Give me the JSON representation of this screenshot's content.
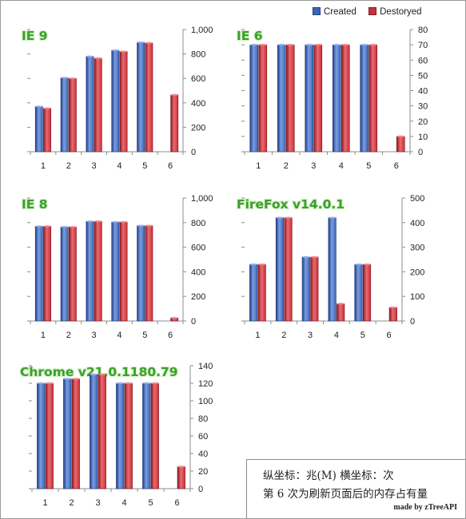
{
  "legend": {
    "created": "Created",
    "destroyed": "Destoryed"
  },
  "colors": {
    "created": "#3a66b8",
    "destroyed": "#c8303a",
    "title": "#3aa02a"
  },
  "chart_data": [
    {
      "type": "bar",
      "title": "IE 9",
      "categories": [
        "1",
        "2",
        "3",
        "4",
        "5",
        "6"
      ],
      "series": [
        {
          "name": "Created",
          "values": [
            370,
            605,
            780,
            830,
            895,
            null
          ]
        },
        {
          "name": "Destoryed",
          "values": [
            355,
            600,
            765,
            820,
            890,
            465
          ]
        }
      ],
      "ylim": [
        0,
        1000
      ],
      "yticks": [
        "0",
        "200",
        "400",
        "600",
        "800",
        "1,000"
      ],
      "ytick_values": [
        0,
        200,
        400,
        600,
        800,
        1000
      ],
      "grid": false
    },
    {
      "type": "bar",
      "title": "IE 6",
      "categories": [
        "1",
        "2",
        "3",
        "4",
        "5",
        "6"
      ],
      "series": [
        {
          "name": "Created",
          "values": [
            70,
            70,
            70,
            70,
            70,
            null
          ]
        },
        {
          "name": "Destoryed",
          "values": [
            70,
            70,
            70,
            70,
            70,
            10
          ]
        }
      ],
      "ylim": [
        0,
        80
      ],
      "yticks": [
        "0",
        "10",
        "20",
        "30",
        "40",
        "50",
        "60",
        "70",
        "80"
      ],
      "ytick_values": [
        0,
        10,
        20,
        30,
        40,
        50,
        60,
        70,
        80
      ],
      "grid": false
    },
    {
      "type": "bar",
      "title": "IE 8",
      "categories": [
        "1",
        "2",
        "3",
        "4",
        "5",
        "6"
      ],
      "series": [
        {
          "name": "Created",
          "values": [
            770,
            765,
            810,
            805,
            775,
            null
          ]
        },
        {
          "name": "Destoryed",
          "values": [
            770,
            765,
            810,
            805,
            775,
            25
          ]
        }
      ],
      "ylim": [
        0,
        1000
      ],
      "yticks": [
        "0",
        "200",
        "400",
        "600",
        "800",
        "1,000"
      ],
      "ytick_values": [
        0,
        200,
        400,
        600,
        800,
        1000
      ],
      "grid": false
    },
    {
      "type": "bar",
      "title": "FireFox v14.0.1",
      "categories": [
        "1",
        "2",
        "3",
        "4",
        "5",
        "6"
      ],
      "series": [
        {
          "name": "Created",
          "values": [
            230,
            420,
            260,
            420,
            230,
            null
          ]
        },
        {
          "name": "Destoryed",
          "values": [
            230,
            420,
            260,
            70,
            230,
            55
          ]
        }
      ],
      "ylim": [
        0,
        500
      ],
      "yticks": [
        "0",
        "100",
        "200",
        "300",
        "400",
        "500"
      ],
      "ytick_values": [
        0,
        100,
        200,
        300,
        400,
        500
      ],
      "grid": false
    },
    {
      "type": "bar",
      "title": "Chrome v21.0.1180.79",
      "categories": [
        "1",
        "2",
        "3",
        "4",
        "5",
        "6"
      ],
      "series": [
        {
          "name": "Created",
          "values": [
            120,
            125,
            130,
            120,
            120,
            null
          ]
        },
        {
          "name": "Destoryed",
          "values": [
            120,
            125,
            130,
            120,
            120,
            25
          ]
        }
      ],
      "ylim": [
        0,
        140
      ],
      "yticks": [
        "0",
        "20",
        "40",
        "60",
        "80",
        "100",
        "120",
        "140"
      ],
      "ytick_values": [
        0,
        20,
        40,
        60,
        80,
        100,
        120,
        140
      ],
      "grid": false
    }
  ],
  "note": {
    "line1": "纵坐标：兆(M)    横坐标：次",
    "line2": "第 6 次为刷新页面后的内存占有量",
    "credit": "made by zTreeAPI"
  }
}
